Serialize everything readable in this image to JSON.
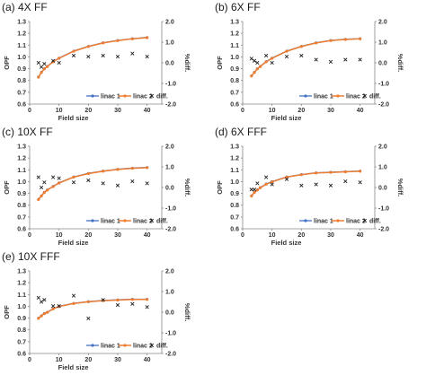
{
  "colors": {
    "linac1": "#4472c4",
    "linac2": "#ed7d31",
    "diff": "#222222",
    "axis": "#888888"
  },
  "chart_data": [
    {
      "type": "line",
      "title": "(a) 4X FF",
      "xlabel": "Field size",
      "ylabel": "OPF",
      "y2label": "%diff.",
      "xlim": [
        0,
        45
      ],
      "xticks": [
        0,
        10,
        20,
        30,
        40
      ],
      "ylim": [
        0.6,
        1.3
      ],
      "yticks": [
        "0.6",
        "0.7",
        "0.8",
        "0.9",
        "1.0",
        "1.1",
        "1.2",
        "1.3"
      ],
      "y2lim": [
        -2,
        2
      ],
      "y2ticks": [
        "-2.0",
        "-1.0",
        "0.0",
        "1.0",
        "2.0"
      ],
      "legend": [
        "linac 1",
        "linac 2",
        "diff."
      ],
      "legend_position": "bottom-right",
      "x": [
        3,
        4,
        5,
        6,
        8,
        10,
        15,
        20,
        25,
        30,
        35,
        40
      ],
      "series": [
        {
          "name": "linac 1",
          "values": [
            0.83,
            0.87,
            0.9,
            0.92,
            0.96,
            0.99,
            1.05,
            1.09,
            1.12,
            1.14,
            1.155,
            1.165
          ]
        },
        {
          "name": "linac 2",
          "values": [
            0.828,
            0.868,
            0.898,
            0.918,
            0.958,
            0.988,
            1.048,
            1.088,
            1.118,
            1.138,
            1.153,
            1.163
          ]
        }
      ],
      "diff": {
        "x": [
          3,
          4,
          5,
          8,
          10,
          15,
          20,
          25,
          30,
          35,
          40
        ],
        "values": [
          0.0,
          -0.2,
          -0.05,
          0.1,
          0.0,
          0.35,
          0.3,
          0.35,
          0.3,
          0.45,
          0.3
        ]
      }
    },
    {
      "type": "line",
      "title": "(b) 6X FF",
      "xlabel": "Field size",
      "ylabel": "OPF",
      "y2label": "%diff.",
      "xlim": [
        0,
        45
      ],
      "xticks": [
        0,
        10,
        20,
        30,
        40
      ],
      "ylim": [
        0.6,
        1.3
      ],
      "yticks": [
        "0.6",
        "0.7",
        "0.8",
        "0.9",
        "1.0",
        "1.1",
        "1.2",
        "1.3"
      ],
      "y2lim": [
        -2,
        2
      ],
      "y2ticks": [
        "-2.0",
        "-1.0",
        "0.0",
        "1.0",
        "2.0"
      ],
      "legend": [
        "linac 1",
        "linac 2",
        "diff."
      ],
      "legend_position": "bottom-right",
      "x": [
        3,
        4,
        5,
        6,
        8,
        10,
        15,
        20,
        25,
        30,
        35,
        40
      ],
      "series": [
        {
          "name": "linac 1",
          "values": [
            0.84,
            0.87,
            0.9,
            0.92,
            0.96,
            0.99,
            1.05,
            1.09,
            1.12,
            1.14,
            1.15,
            1.155
          ]
        },
        {
          "name": "linac 2",
          "values": [
            0.838,
            0.868,
            0.898,
            0.918,
            0.958,
            0.988,
            1.048,
            1.088,
            1.118,
            1.138,
            1.148,
            1.153
          ]
        }
      ],
      "diff": {
        "x": [
          3,
          4,
          5,
          8,
          10,
          15,
          20,
          25,
          30,
          35,
          40
        ],
        "values": [
          0.2,
          0.1,
          0.0,
          0.35,
          0.0,
          0.3,
          0.35,
          0.15,
          0.05,
          0.15,
          0.15
        ]
      }
    },
    {
      "type": "line",
      "title": "(c) 10X FF",
      "xlabel": "Field size",
      "ylabel": "OPF",
      "y2label": "%diff.",
      "xlim": [
        0,
        45
      ],
      "xticks": [
        0,
        10,
        20,
        30,
        40
      ],
      "ylim": [
        0.6,
        1.3
      ],
      "yticks": [
        "0.6",
        "0.7",
        "0.8",
        "0.9",
        "1.0",
        "1.1",
        "1.2",
        "1.3"
      ],
      "y2lim": [
        -2,
        2
      ],
      "y2ticks": [
        "-2.0",
        "-1.0",
        "0.0",
        "1.0",
        "2.0"
      ],
      "legend": [
        "linac 1",
        "linac 2",
        "diff."
      ],
      "legend_position": "bottom-right",
      "x": [
        3,
        4,
        5,
        6,
        8,
        10,
        15,
        20,
        25,
        30,
        35,
        40
      ],
      "series": [
        {
          "name": "linac 1",
          "values": [
            0.85,
            0.88,
            0.91,
            0.93,
            0.96,
            0.99,
            1.04,
            1.07,
            1.09,
            1.105,
            1.115,
            1.12
          ]
        },
        {
          "name": "linac 2",
          "values": [
            0.848,
            0.878,
            0.908,
            0.928,
            0.958,
            0.988,
            1.038,
            1.068,
            1.088,
            1.103,
            1.113,
            1.118
          ]
        }
      ],
      "diff": {
        "x": [
          3,
          4,
          5,
          8,
          10,
          15,
          20,
          25,
          30,
          35,
          40
        ],
        "values": [
          0.5,
          0.0,
          0.25,
          0.5,
          0.45,
          0.25,
          0.35,
          0.2,
          0.1,
          0.3,
          0.2
        ]
      }
    },
    {
      "type": "line",
      "title": "(d) 6X FFF",
      "xlabel": "Field size",
      "ylabel": "OPF",
      "y2label": "%diff.",
      "xlim": [
        0,
        45
      ],
      "xticks": [
        0,
        10,
        20,
        30,
        40
      ],
      "ylim": [
        0.6,
        1.3
      ],
      "yticks": [
        "0.6",
        "0.7",
        "0.8",
        "0.9",
        "1.0",
        "1.1",
        "1.2",
        "1.3"
      ],
      "y2lim": [
        -2,
        2
      ],
      "y2ticks": [
        "-2.0",
        "-1.0",
        "0.0",
        "1.0",
        "2.0"
      ],
      "legend": [
        "linac 1",
        "linac 2",
        "diff."
      ],
      "legend_position": "bottom-right",
      "x": [
        3,
        4,
        5,
        6,
        8,
        10,
        15,
        20,
        25,
        30,
        35,
        40
      ],
      "series": [
        {
          "name": "linac 1",
          "values": [
            0.88,
            0.91,
            0.93,
            0.95,
            0.98,
            1.0,
            1.04,
            1.06,
            1.075,
            1.08,
            1.085,
            1.09
          ]
        },
        {
          "name": "linac 2",
          "values": [
            0.878,
            0.908,
            0.928,
            0.948,
            0.978,
            0.998,
            1.038,
            1.058,
            1.073,
            1.078,
            1.083,
            1.088
          ]
        }
      ],
      "diff": {
        "x": [
          3,
          4,
          5,
          8,
          10,
          15,
          20,
          25,
          30,
          35,
          40
        ],
        "values": [
          -0.1,
          -0.1,
          0.2,
          0.5,
          0.15,
          0.4,
          0.1,
          0.15,
          0.1,
          0.3,
          0.25
        ]
      }
    },
    {
      "type": "line",
      "title": "(e) 10X FFF",
      "xlabel": "Field size",
      "ylabel": "OPF",
      "y2label": "%diff.",
      "xlim": [
        0,
        45
      ],
      "xticks": [
        0,
        10,
        20,
        30,
        40
      ],
      "ylim": [
        0.6,
        1.3
      ],
      "yticks": [
        "0.6",
        "0.7",
        "0.8",
        "0.9",
        "1.0",
        "1.1",
        "1.2",
        "1.3"
      ],
      "y2lim": [
        -2,
        2
      ],
      "y2ticks": [
        "-2.0",
        "-1.0",
        "0.0",
        "1.0",
        "2.0"
      ],
      "legend": [
        "linac 1",
        "linac 2",
        "diff."
      ],
      "legend_position": "bottom-right",
      "x": [
        3,
        4,
        5,
        6,
        8,
        10,
        15,
        20,
        25,
        30,
        35,
        40
      ],
      "series": [
        {
          "name": "linac 1",
          "values": [
            0.9,
            0.92,
            0.94,
            0.95,
            0.98,
            1.0,
            1.025,
            1.04,
            1.05,
            1.055,
            1.06,
            1.06
          ]
        },
        {
          "name": "linac 2",
          "values": [
            0.898,
            0.918,
            0.938,
            0.948,
            0.978,
            0.998,
            1.023,
            1.038,
            1.048,
            1.053,
            1.058,
            1.058
          ]
        }
      ],
      "diff": {
        "x": [
          3,
          4,
          5,
          8,
          10,
          15,
          20,
          25,
          30,
          35,
          40
        ],
        "values": [
          0.7,
          0.5,
          0.6,
          0.3,
          0.3,
          0.8,
          -0.3,
          0.6,
          0.35,
          0.4,
          0.25
        ]
      }
    }
  ]
}
